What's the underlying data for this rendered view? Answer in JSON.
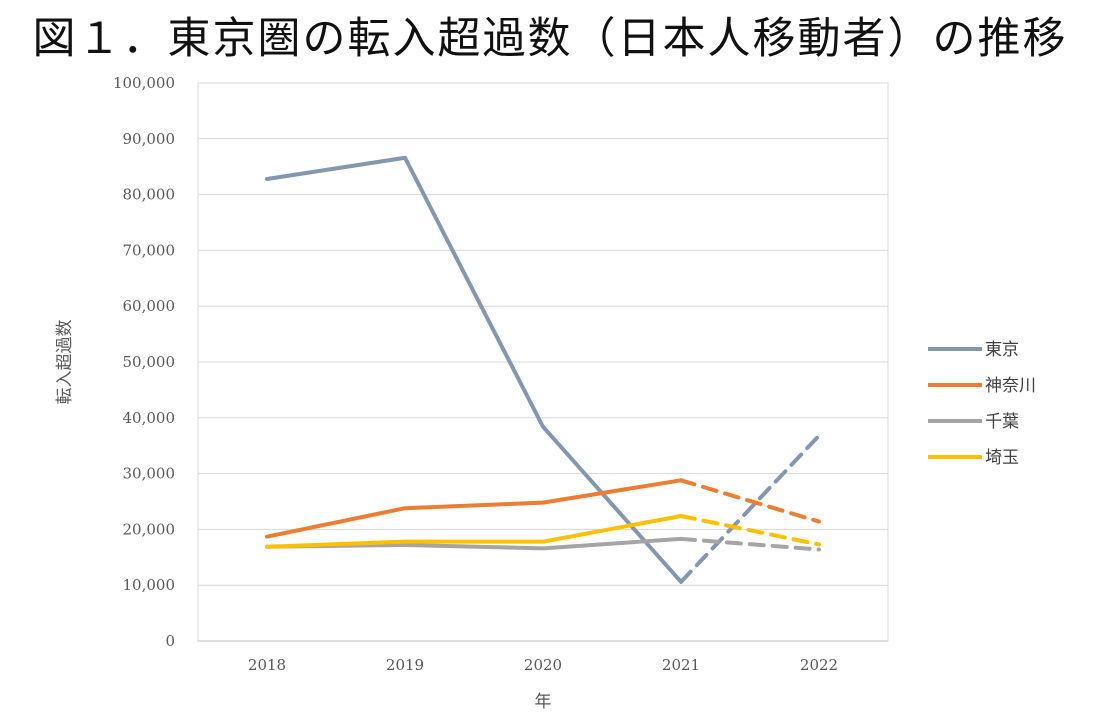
{
  "chart_data": {
    "type": "line",
    "title": "図１．東京圏の転入超過数（日本人移動者）の推移",
    "xlabel": "年",
    "ylabel": "転入超過数",
    "categories": [
      "2018",
      "2019",
      "2020",
      "2021",
      "2022"
    ],
    "ylim": [
      0,
      100000
    ],
    "y_ticks": [
      "0",
      "10,000",
      "20,000",
      "30,000",
      "40,000",
      "50,000",
      "60,000",
      "70,000",
      "80,000",
      "90,000",
      "100,000"
    ],
    "grid": true,
    "legend_position": "right",
    "dashed_segment": "2021-2022",
    "series": [
      {
        "name": "東京",
        "color": "#8497b0",
        "values": [
          82800,
          86600,
          38400,
          10600,
          36800
        ]
      },
      {
        "name": "神奈川",
        "color": "#ed7d31",
        "values": [
          18700,
          23800,
          24800,
          28800,
          21400
        ]
      },
      {
        "name": "千葉",
        "color": "#a5a5a5",
        "values": [
          16900,
          17200,
          16600,
          18300,
          16400
        ]
      },
      {
        "name": "埼玉",
        "color": "#ffc000",
        "values": [
          16900,
          17800,
          17800,
          22400,
          17300
        ]
      }
    ]
  }
}
